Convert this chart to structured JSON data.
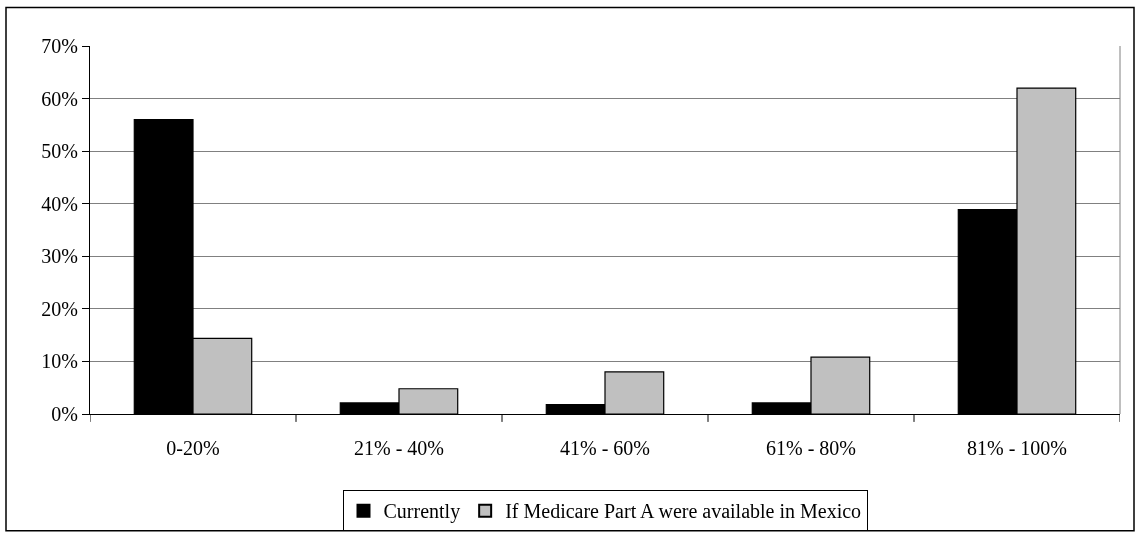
{
  "chart_data": {
    "type": "bar",
    "categories": [
      "0-20%",
      "21% - 40%",
      "41% - 60%",
      "61% - 80%",
      "81% - 100%"
    ],
    "series": [
      {
        "name": "Currently",
        "color": "#000000",
        "values": [
          56,
          2.1,
          1.8,
          2.1,
          38.9
        ]
      },
      {
        "name": "If Medicare Part A were available in Mexico",
        "color": "#c0c0c0",
        "values": [
          14.4,
          4.8,
          8.0,
          10.8,
          62
        ]
      }
    ],
    "ylim": [
      0,
      70
    ],
    "yticks": [
      {
        "value": 0,
        "label": "0%"
      },
      {
        "value": 10,
        "label": "10%"
      },
      {
        "value": 20,
        "label": "20%"
      },
      {
        "value": 30,
        "label": "30%"
      },
      {
        "value": 40,
        "label": "40%"
      },
      {
        "value": 50,
        "label": "50%"
      },
      {
        "value": 60,
        "label": "60%"
      },
      {
        "value": 70,
        "label": "70%"
      }
    ],
    "grid": "y",
    "legend": "bottom"
  }
}
